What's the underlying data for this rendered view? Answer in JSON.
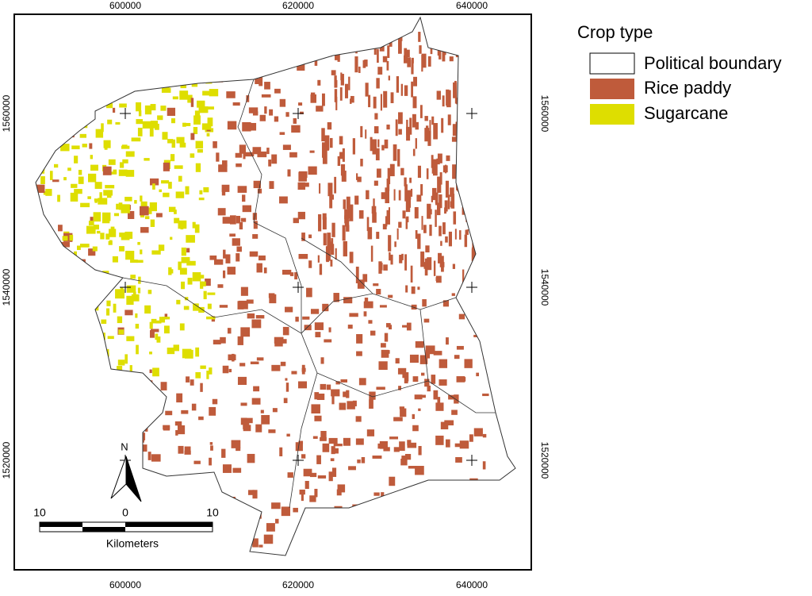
{
  "map": {
    "x_labels": [
      "600000",
      "620000",
      "640000"
    ],
    "y_labels": [
      "1560000",
      "1540000",
      "1520000"
    ]
  },
  "legend": {
    "title": "Crop type",
    "items": [
      "Political boundary",
      "Rice paddy",
      "Sugarcane"
    ]
  },
  "scale_bar": {
    "labels": [
      "10",
      "0",
      "10"
    ],
    "unit": "Kilometers"
  },
  "north_arrow": "N"
}
